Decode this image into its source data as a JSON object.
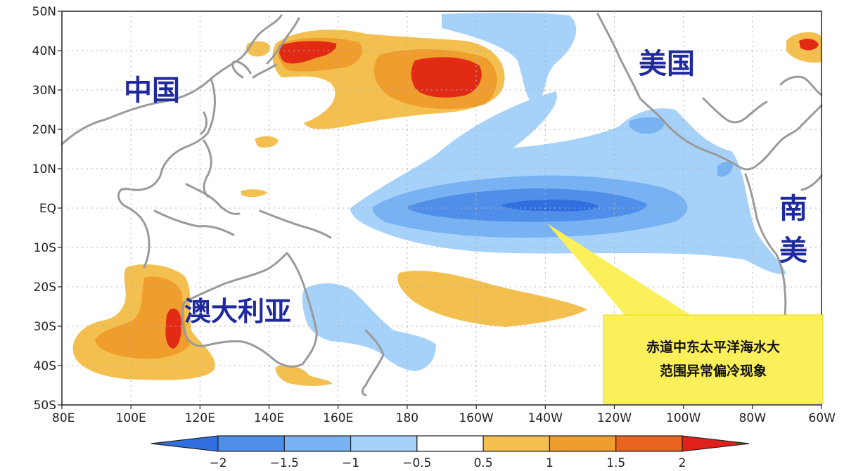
{
  "map": {
    "lat_labels": [
      "50N",
      "40N",
      "30N",
      "20N",
      "10N",
      "EQ",
      "10S",
      "20S",
      "30S",
      "40S",
      "50S"
    ],
    "lon_labels": [
      "80E",
      "100E",
      "120E",
      "140E",
      "160E",
      "180",
      "160W",
      "140W",
      "120W",
      "100W",
      "80W",
      "60W"
    ],
    "regions": {
      "china": "中国",
      "usa": "美国",
      "south_america_1": "南",
      "south_america_2": "美",
      "australia": "澳大利亚"
    },
    "callout": {
      "line1": "赤道中东太平洋海水大",
      "line2": "范围异常偏冷现象"
    },
    "colorbar": {
      "ticks": [
        "−2",
        "−1.5",
        "−1",
        "−0.5",
        "0.5",
        "1",
        "1.5",
        "2"
      ],
      "bin_colors": [
        "#2f6fe0",
        "#4f8fea",
        "#79b2f2",
        "#a6d2fa",
        "#ffffff",
        "#f3bf4f",
        "#ef9d2c",
        "#e8641f",
        "#e0201a"
      ]
    },
    "colors": {
      "warm_light": "#f3bf4f",
      "warm_mid": "#ef9d2c",
      "warm_strong": "#e22b15",
      "cool_light": "#a6d2fa",
      "cool_mid": "#79b2f2",
      "cool_strong": "#4f8fea",
      "cool_max": "#2f6fe0",
      "land_outline": "#9a9a9a",
      "callout_fill": "#fbf05a"
    }
  }
}
